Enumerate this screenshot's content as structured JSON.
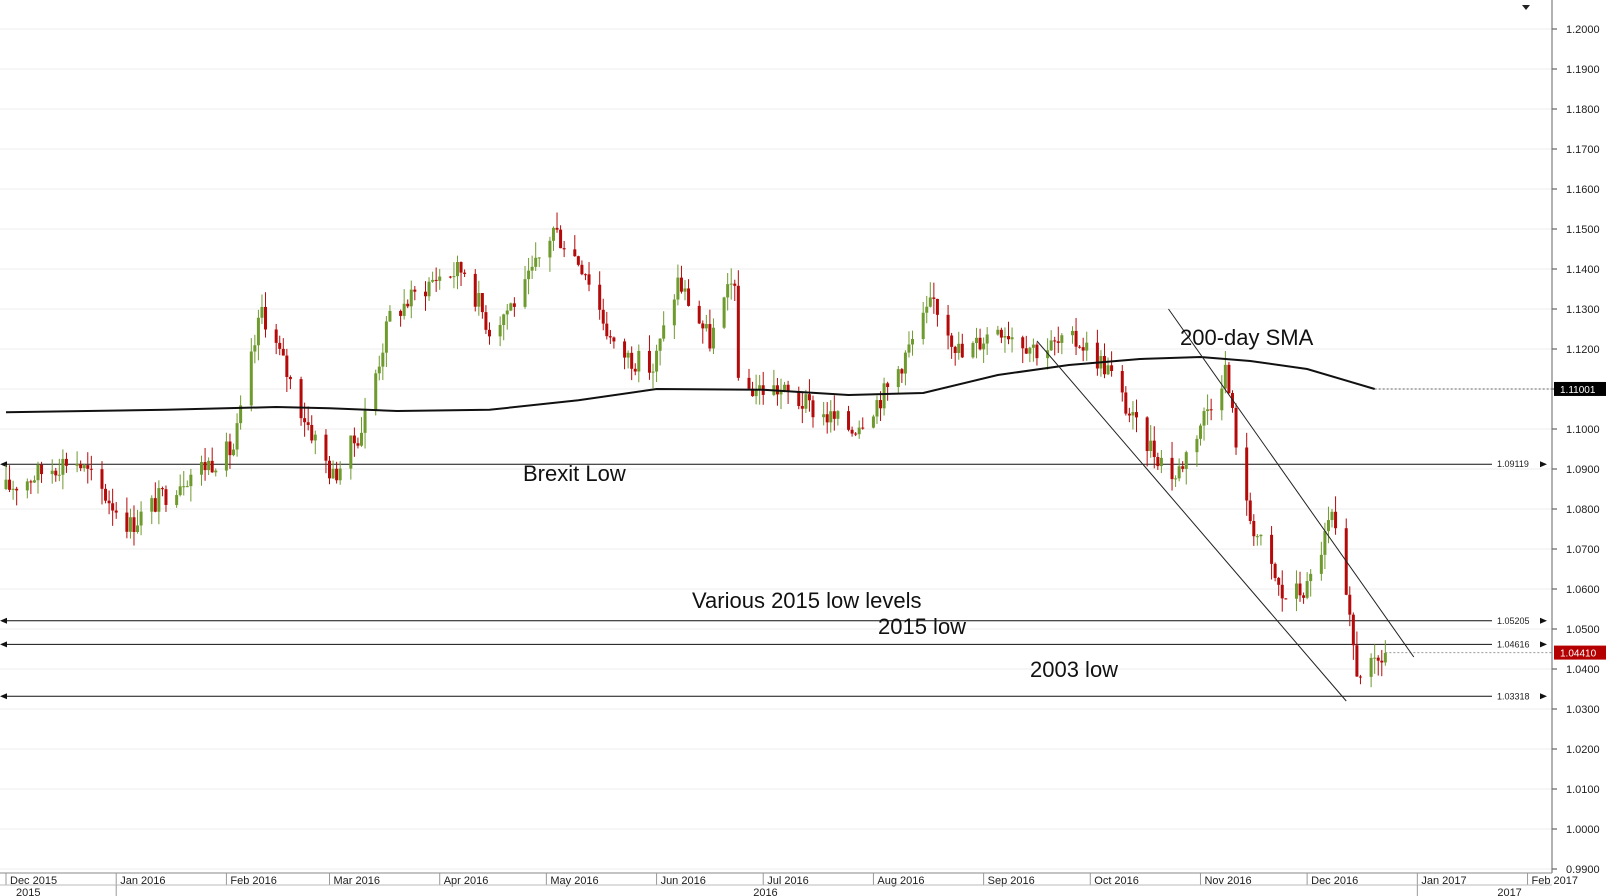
{
  "chart_data": {
    "type": "candlestick",
    "instrument": "EUR/USD daily",
    "y_axis": {
      "ticks": [
        "1.2000",
        "1.1900",
        "1.1800",
        "1.1700",
        "1.1600",
        "1.1500",
        "1.1400",
        "1.1300",
        "1.1200",
        "1.1100",
        "1.1000",
        "1.0900",
        "1.0800",
        "1.0700",
        "1.0600",
        "1.0500",
        "1.0400",
        "1.0300",
        "1.0200",
        "1.0100",
        "1.0000",
        "0.9900"
      ],
      "range": [
        0.99,
        1.2065
      ],
      "side": "right"
    },
    "x_axis": {
      "month_labels": [
        "Dec 2015",
        "Jan 2016",
        "Feb 2016",
        "Mar 2016",
        "Apr 2016",
        "May 2016",
        "Jun 2016",
        "Jul 2016",
        "Aug 2016",
        "Sep 2016",
        "Oct 2016",
        "Nov 2016",
        "Dec 2016",
        "Jan 2017",
        "Feb 2017"
      ],
      "year_labels": [
        "2015",
        "2016",
        "2017"
      ]
    },
    "horizontal_levels": [
      {
        "value": 1.09119,
        "label": "1.09119"
      },
      {
        "value": 1.05205,
        "label": "1.05205"
      },
      {
        "value": 1.04616,
        "label": "1.04616"
      },
      {
        "value": 1.03318,
        "label": "1.03318"
      }
    ],
    "price_badges": [
      {
        "value": 1.11001,
        "label": "1.11001",
        "color": "#000000"
      },
      {
        "value": 1.0441,
        "label": "1.04410",
        "color": "#b40000"
      }
    ],
    "annotations": [
      {
        "text": "Brexit Low"
      },
      {
        "text": "200-day SMA"
      },
      {
        "text": "Various 2015 low levels"
      },
      {
        "text": "2015 low"
      },
      {
        "text": "2003 low"
      }
    ],
    "sma_200": {
      "dates": [
        "2015-12-01",
        "2016-01-15",
        "2016-02-15",
        "2016-03-01",
        "2016-03-20",
        "2016-04-15",
        "2016-05-10",
        "2016-06-01",
        "2016-07-01",
        "2016-07-25",
        "2016-08-15",
        "2016-09-05",
        "2016-09-25",
        "2016-10-15",
        "2016-11-01",
        "2016-11-15",
        "2016-12-01",
        "2016-12-20"
      ],
      "values": [
        1.1042,
        1.1048,
        1.1055,
        1.1052,
        1.1045,
        1.1048,
        1.1072,
        1.11,
        1.1098,
        1.1085,
        1.109,
        1.1135,
        1.116,
        1.1175,
        1.118,
        1.117,
        1.115,
        1.11
      ]
    },
    "channel_lines": [
      {
        "start_date": "2016-09-16",
        "start_value": 1.122,
        "end_date": "2016-12-12",
        "end_value": 1.032
      },
      {
        "start_date": "2016-10-23",
        "start_value": 1.13,
        "end_date": "2016-12-31",
        "end_value": 1.043
      }
    ],
    "anchor_closes": [
      [
        "2015-12-01",
        1.085
      ],
      [
        "2015-12-20",
        1.093
      ],
      [
        "2016-01-05",
        1.076
      ],
      [
        "2016-01-20",
        1.088
      ],
      [
        "2016-02-03",
        1.095
      ],
      [
        "2016-02-11",
        1.13
      ],
      [
        "2016-02-22",
        1.105
      ],
      [
        "2016-03-02",
        1.088
      ],
      [
        "2016-03-10",
        1.1
      ],
      [
        "2016-03-18",
        1.128
      ],
      [
        "2016-03-31",
        1.138
      ],
      [
        "2016-04-08",
        1.14
      ],
      [
        "2016-04-15",
        1.125
      ],
      [
        "2016-04-25",
        1.135
      ],
      [
        "2016-05-03",
        1.15
      ],
      [
        "2016-05-12",
        1.14
      ],
      [
        "2016-05-20",
        1.12
      ],
      [
        "2016-05-31",
        1.115
      ],
      [
        "2016-06-07",
        1.137
      ],
      [
        "2016-06-16",
        1.122
      ],
      [
        "2016-06-23",
        1.138
      ],
      [
        "2016-06-24",
        1.11
      ],
      [
        "2016-07-05",
        1.11
      ],
      [
        "2016-07-15",
        1.105
      ],
      [
        "2016-07-26",
        1.1
      ],
      [
        "2016-08-05",
        1.11
      ],
      [
        "2016-08-18",
        1.132
      ],
      [
        "2016-08-26",
        1.118
      ],
      [
        "2016-09-05",
        1.126
      ],
      [
        "2016-09-16",
        1.12
      ],
      [
        "2016-09-28",
        1.122
      ],
      [
        "2016-10-06",
        1.115
      ],
      [
        "2016-10-14",
        1.1
      ],
      [
        "2016-10-25",
        1.088
      ],
      [
        "2016-11-08",
        1.115
      ],
      [
        "2016-11-14",
        1.08
      ],
      [
        "2016-11-24",
        1.058
      ],
      [
        "2016-12-01",
        1.06
      ],
      [
        "2016-12-08",
        1.078
      ],
      [
        "2016-12-15",
        1.04
      ],
      [
        "2016-12-20",
        1.04
      ],
      [
        "2016-12-23",
        1.0441
      ]
    ],
    "legend": "none",
    "grid": "horizontal"
  }
}
